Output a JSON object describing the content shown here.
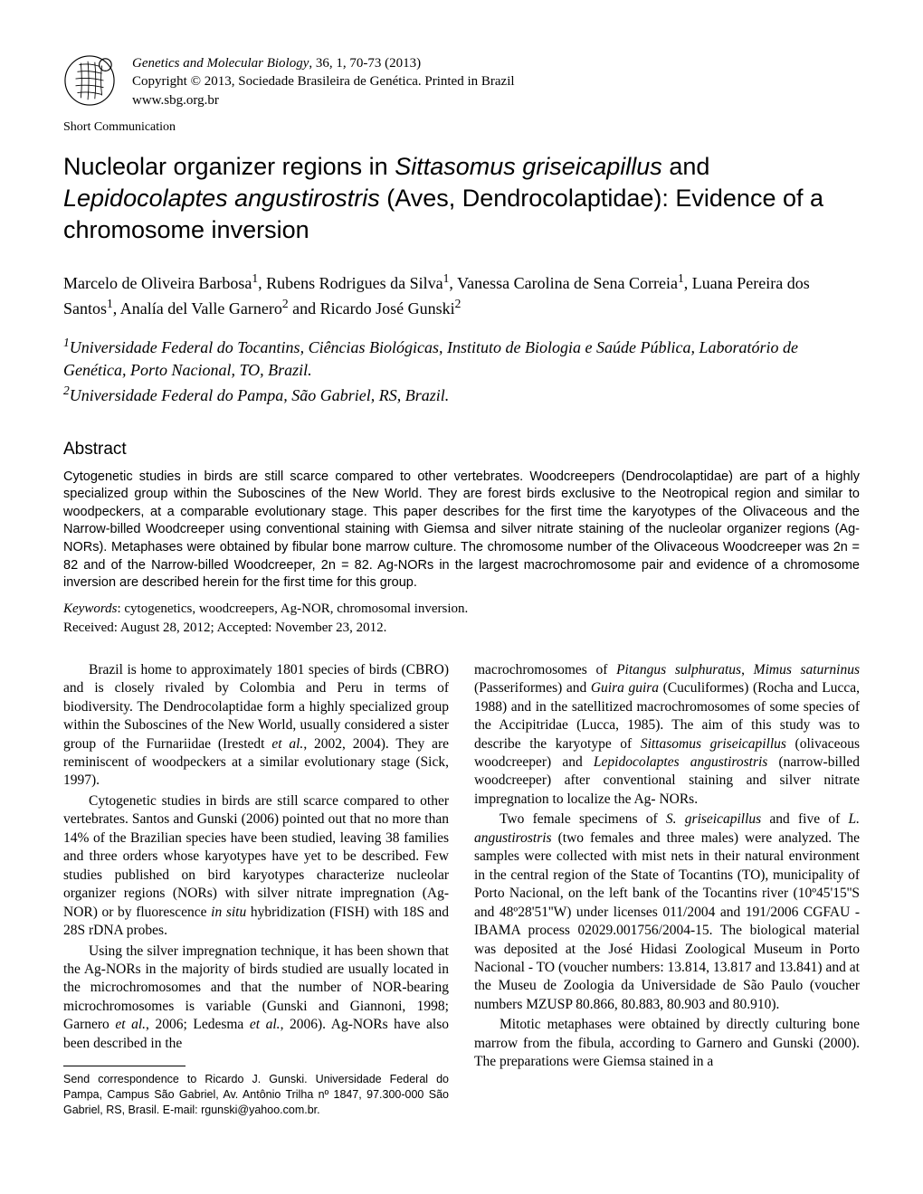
{
  "header": {
    "journal_line": "Genetics and Molecular Biology, 36, 1, 70-73 (2013)",
    "copyright": "Copyright © 2013, Sociedade Brasileira de Genética. Printed in Brazil",
    "website": "www.sbg.org.br",
    "section": "Short Communication"
  },
  "title": {
    "line1_pre": "Nucleolar organizer regions in ",
    "line1_ital1": "Sittasomus griseicapillus",
    "line1_mid": " and ",
    "line2_ital": "Lepidocolaptes angustirostris",
    "line2_post": " (Aves, Dendrocolaptidae): Evidence of a chromosome inversion"
  },
  "authors_html": "Marcelo de Oliveira Barbosa<sup>1</sup>, Rubens Rodrigues da Silva<sup>1</sup>, Vanessa Carolina de Sena Correia<sup>1</sup>, Luana Pereira dos Santos<sup>1</sup>, Analía del Valle Garnero<sup>2</sup> and Ricardo José Gunski<sup>2</sup>",
  "affil1": "Universidade Federal do Tocantins, Ciências Biológicas, Instituto de Biologia e Saúde Pública, Laboratório de Genética, Porto Nacional, TO, Brazil.",
  "affil2": "Universidade Federal do Pampa, São Gabriel, RS, Brazil.",
  "abstract": {
    "heading": "Abstract",
    "body": "Cytogenetic studies in birds are still scarce compared to other vertebrates. Woodcreepers (Dendrocolaptidae) are part of a highly specialized group within the Suboscines of the New World. They are forest birds exclusive to the Neotropical region and similar to woodpeckers, at a comparable evolutionary stage. This paper describes for the first time the karyotypes of the Olivaceous and the Narrow-billed Woodcreeper using conventional staining with Giemsa and silver nitrate staining of the nucleolar organizer regions (Ag-NORs). Metaphases were obtained by fibular bone marrow culture. The chromosome number of the Olivaceous Woodcreeper was 2n = 82 and of the Narrow-billed Woodcreeper, 2n = 82. Ag-NORs in the largest macrochromosome pair and evidence of a chromosome inversion are described herein for the first time for this group.",
    "keywords_label": "Keywords",
    "keywords": ": cytogenetics, woodcreepers, Ag-NOR, chromosomal inversion.",
    "received": "Received: August 28, 2012; Accepted: November 23, 2012."
  },
  "body": {
    "left": {
      "p1": "Brazil is home to approximately 1801 species of birds (CBRO) and is closely rivaled by Colombia and Peru in terms of biodiversity. The Dendrocolaptidae form a highly specialized group within the Suboscines of the New World, usually considered a sister group of the Furnariidae (Irestedt <span class=\"ital\">et al.</span>, 2002, 2004). They are reminiscent of woodpeckers at a similar evolutionary stage (Sick, 1997).",
      "p2": "Cytogenetic studies in birds are still scarce compared to other vertebrates. Santos and Gunski (2006) pointed out that no more than 14% of the Brazilian species have been studied, leaving 38 families and three orders whose karyotypes have yet to be described. Few studies published on bird karyotypes characterize nucleolar organizer regions (NORs) with silver nitrate impregnation (Ag-NOR) or by fluorescence <span class=\"ital\">in situ</span> hybridization (FISH) with 18S and 28S rDNA probes.",
      "p3": "Using the silver impregnation technique, it has been shown that the Ag-NORs in the majority of birds studied are usually located in the microchromosomes and that the number of NOR-bearing microchromosomes is variable (Gunski and Giannoni, 1998; Garnero <span class=\"ital\">et al.</span>, 2006; Ledesma <span class=\"ital\">et al.</span>, 2006). Ag-NORs have also been described in the",
      "correspondence": "Send correspondence to Ricardo J. Gunski. Universidade Federal do Pampa, Campus São Gabriel, Av. Antônio Trilha nº 1847, 97.300-000 São Gabriel, RS, Brasil. E-mail: rgunski@yahoo.com.br."
    },
    "right": {
      "p1": "macrochromosomes of <span class=\"ital\">Pitangus sulphuratus</span>, <span class=\"ital\">Mimus saturninus</span> (Passeriformes) and <span class=\"ital\">Guira guira</span> (Cuculiformes) (Rocha and Lucca, 1988) and in the satellitized macrochromosomes of some species of the Accipitridae (Lucca, 1985). The aim of this study was to describe the karyotype of <span class=\"ital\">Sittasomus griseicapillus</span> (olivaceous woodcreeper) and <span class=\"ital\">Lepidocolaptes angustirostris</span> (narrow-billed woodcreeper) after conventional staining and silver nitrate impregnation to localize the Ag- NORs.",
      "p2": "Two female specimens of <span class=\"ital\">S. griseicapillus</span> and five of <span class=\"ital\">L. angustirostris</span> (two females and three males) were analyzed. The samples were collected with mist nets in their natural environment in the central region of the State of Tocantins (TO), municipality of Porto Nacional, on the left bank of the Tocantins river (10º45'15''S and 48º28'51''W) under licenses 011/2004 and 191/2006 CGFAU - IBAMA process 02029.001756/2004-15. The biological material was deposited at the José Hidasi Zoological Museum in Porto Nacional - TO (voucher numbers: 13.814, 13.817 and 13.841) and at the Museu de Zoologia da Universidade de São Paulo (voucher numbers MZUSP 80.866, 80.883, 80.903 and 80.910).",
      "p3": "Mitotic metaphases were obtained by directly culturing bone marrow from the fibula, according to Garnero and Gunski (2000). The preparations were Giemsa stained in a"
    }
  }
}
